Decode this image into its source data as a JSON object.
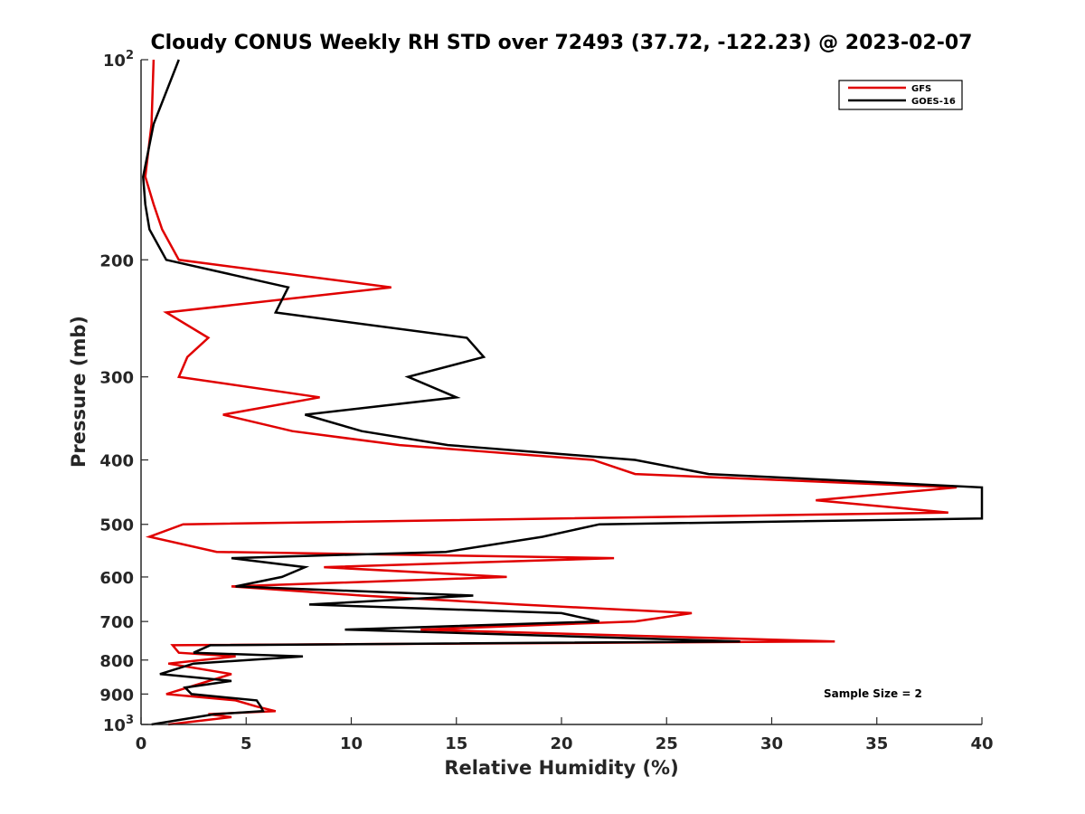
{
  "chart_data": {
    "type": "line",
    "title": "Cloudy CONUS Weekly RH STD over 72493 (37.72, -122.23) @ 2023-02-07",
    "xlabel": "Relative Humidity (%)",
    "ylabel": "Pressure (mb)",
    "xlim": [
      0,
      40
    ],
    "ylim": [
      100,
      1000
    ],
    "y_scale": "log",
    "y_reversed": true,
    "grid": false,
    "legend_position": "top-right",
    "x_ticks": [
      0,
      5,
      10,
      15,
      20,
      25,
      30,
      35,
      40
    ],
    "y_ticks": [
      {
        "value": 100,
        "base": "10",
        "exp": "2"
      },
      {
        "value": 200,
        "label": "200"
      },
      {
        "value": 300,
        "label": "300"
      },
      {
        "value": 400,
        "label": "400"
      },
      {
        "value": 500,
        "label": "500"
      },
      {
        "value": 600,
        "label": "600"
      },
      {
        "value": 700,
        "label": "700"
      },
      {
        "value": 800,
        "label": "800"
      },
      {
        "value": 900,
        "label": "900"
      },
      {
        "value": 1000,
        "base": "10",
        "exp": "3"
      }
    ],
    "annotation": "Sample Size = 2",
    "series": [
      {
        "name": "GFS",
        "color": "#e00000",
        "points": [
          [
            0.6,
            100
          ],
          [
            0.5,
            125
          ],
          [
            0.2,
            150
          ],
          [
            0.6,
            165
          ],
          [
            1.0,
            180
          ],
          [
            1.8,
            200
          ],
          [
            11.9,
            220
          ],
          [
            1.2,
            240
          ],
          [
            3.2,
            262
          ],
          [
            2.2,
            280
          ],
          [
            1.8,
            300
          ],
          [
            8.5,
            322
          ],
          [
            3.9,
            342
          ],
          [
            7.2,
            362
          ],
          [
            12.3,
            380
          ],
          [
            21.5,
            400
          ],
          [
            23.5,
            420
          ],
          [
            38.8,
            440
          ],
          [
            32.1,
            460
          ],
          [
            38.4,
            480
          ],
          [
            2.0,
            500
          ],
          [
            0.4,
            522
          ],
          [
            3.6,
            550
          ],
          [
            22.5,
            562
          ],
          [
            8.7,
            580
          ],
          [
            17.4,
            600
          ],
          [
            4.3,
            620
          ],
          [
            10.5,
            640
          ],
          [
            18.0,
            660
          ],
          [
            26.2,
            680
          ],
          [
            23.5,
            700
          ],
          [
            13.3,
            720
          ],
          [
            33.0,
            750
          ],
          [
            1.5,
            760
          ],
          [
            1.8,
            780
          ],
          [
            4.5,
            790
          ],
          [
            1.3,
            810
          ],
          [
            4.3,
            840
          ],
          [
            1.2,
            900
          ],
          [
            4.5,
            920
          ],
          [
            5.5,
            940
          ],
          [
            6.4,
            955
          ],
          [
            3.2,
            965
          ],
          [
            4.3,
            975
          ],
          [
            1.3,
            1000
          ]
        ]
      },
      {
        "name": "GOES-16",
        "color": "#000000",
        "points": [
          [
            1.8,
            100
          ],
          [
            0.6,
            125
          ],
          [
            0.1,
            150
          ],
          [
            0.2,
            165
          ],
          [
            0.4,
            180
          ],
          [
            1.2,
            200
          ],
          [
            7.0,
            220
          ],
          [
            6.4,
            240
          ],
          [
            15.5,
            262
          ],
          [
            16.3,
            280
          ],
          [
            12.7,
            300
          ],
          [
            15.0,
            322
          ],
          [
            7.8,
            342
          ],
          [
            10.5,
            362
          ],
          [
            14.6,
            380
          ],
          [
            23.5,
            400
          ],
          [
            27.0,
            420
          ],
          [
            40.0,
            440
          ],
          [
            40.0,
            490
          ],
          [
            21.8,
            500
          ],
          [
            19.1,
            522
          ],
          [
            14.5,
            550
          ],
          [
            4.3,
            562
          ],
          [
            7.8,
            580
          ],
          [
            6.7,
            600
          ],
          [
            4.5,
            620
          ],
          [
            15.8,
            640
          ],
          [
            8.0,
            660
          ],
          [
            20.0,
            680
          ],
          [
            21.8,
            700
          ],
          [
            9.7,
            720
          ],
          [
            28.5,
            750
          ],
          [
            3.3,
            760
          ],
          [
            2.5,
            780
          ],
          [
            7.7,
            790
          ],
          [
            2.5,
            810
          ],
          [
            0.9,
            840
          ],
          [
            4.3,
            860
          ],
          [
            2.1,
            880
          ],
          [
            2.4,
            900
          ],
          [
            5.5,
            920
          ],
          [
            5.7,
            940
          ],
          [
            5.8,
            955
          ],
          [
            3.5,
            965
          ],
          [
            0.5,
            1000
          ]
        ]
      }
    ]
  }
}
